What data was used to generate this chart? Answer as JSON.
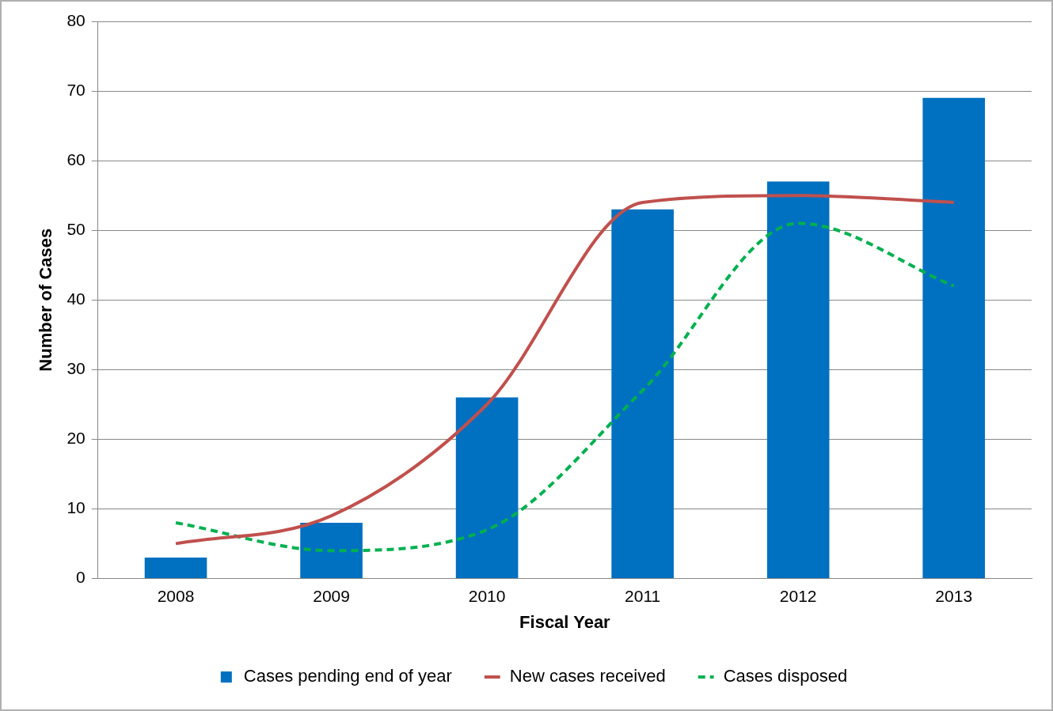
{
  "chart_data": {
    "type": "bar",
    "xlabel": "Fiscal Year",
    "ylabel": "Number of Cases",
    "categories": [
      "2008",
      "2009",
      "2010",
      "2011",
      "2012",
      "2013"
    ],
    "series": [
      {
        "name": "Cases pending end of year",
        "color": "#0070c0",
        "values": [
          3,
          8,
          26,
          53,
          57,
          69
        ]
      },
      {
        "name": "New cases received",
        "type": "line",
        "color": "#c0504d",
        "line_style": "solid",
        "values": [
          5,
          9,
          25,
          54,
          55,
          54
        ]
      },
      {
        "name": "Cases disposed",
        "type": "line",
        "color": "#00b050",
        "line_style": "dashed",
        "values": [
          8,
          4,
          7,
          27,
          51,
          42
        ]
      }
    ],
    "ylim": [
      0,
      80
    ],
    "yticks": [
      0,
      10,
      20,
      30,
      40,
      50,
      60,
      70,
      80
    ],
    "grid": "y",
    "legend": "bottom",
    "marker": "none"
  }
}
